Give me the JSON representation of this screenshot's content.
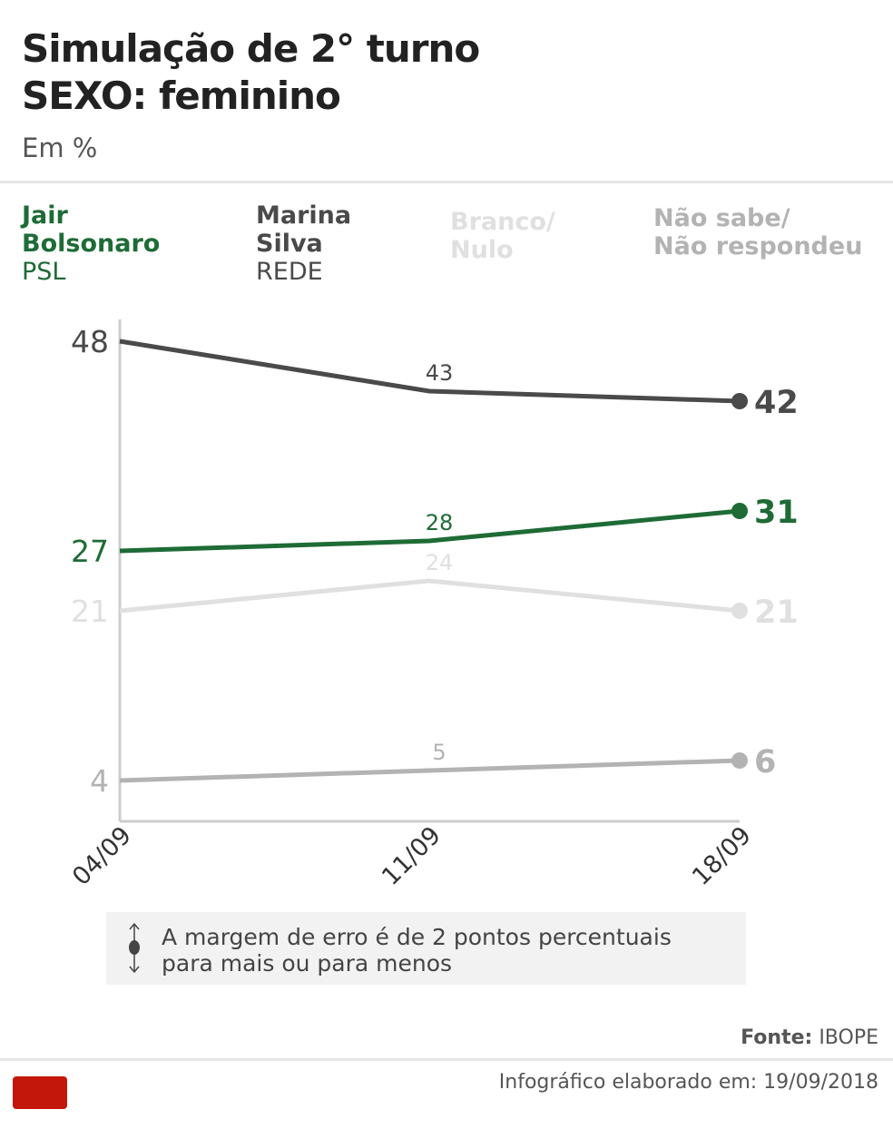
{
  "header": {
    "title_line1": "Simulação de 2° turno",
    "title_line2": "SEXO: feminino",
    "subtitle": "Em %"
  },
  "legend": [
    {
      "name": "Jair Bolsonaro",
      "line1": "Jair",
      "line2": "Bolsonaro",
      "party": "PSL",
      "color": "#1e6b36"
    },
    {
      "name": "Marina Silva",
      "line1": "Marina",
      "line2": "Silva",
      "party": "REDE",
      "color": "#4a4a4a"
    },
    {
      "name": "Branco/Nulo",
      "line1": "Branco/",
      "line2": "Nulo",
      "party": "",
      "color": "#e0e0e0"
    },
    {
      "name": "Não sabe/Não respondeu",
      "line1": "Não sabe/",
      "line2": "Não respondeu",
      "party": "",
      "color": "#b3b3b3"
    }
  ],
  "chart_data": {
    "type": "line",
    "categories": [
      "04/09",
      "11/09",
      "18/09"
    ],
    "ylim": [
      4,
      48
    ],
    "series": [
      {
        "name": "Marina Silva",
        "values": [
          48,
          43,
          42
        ],
        "color": "#4a4a4a"
      },
      {
        "name": "Jair Bolsonaro",
        "values": [
          27,
          28,
          31
        ],
        "color": "#1e6b36"
      },
      {
        "name": "Branco/Nulo",
        "values": [
          21,
          24,
          21
        ],
        "color": "#e0e0e0"
      },
      {
        "name": "Não sabe/Não respondeu",
        "values": [
          4,
          5,
          6
        ],
        "color": "#b3b3b3"
      }
    ]
  },
  "note": {
    "line1": "A margem de erro é de 2 pontos percentuais",
    "line2": "para mais ou para menos"
  },
  "footer": {
    "source_label": "Fonte:",
    "source": "IBOPE",
    "made": "Infográfico elaborado em: 19/09/2018",
    "logo": "G1"
  }
}
